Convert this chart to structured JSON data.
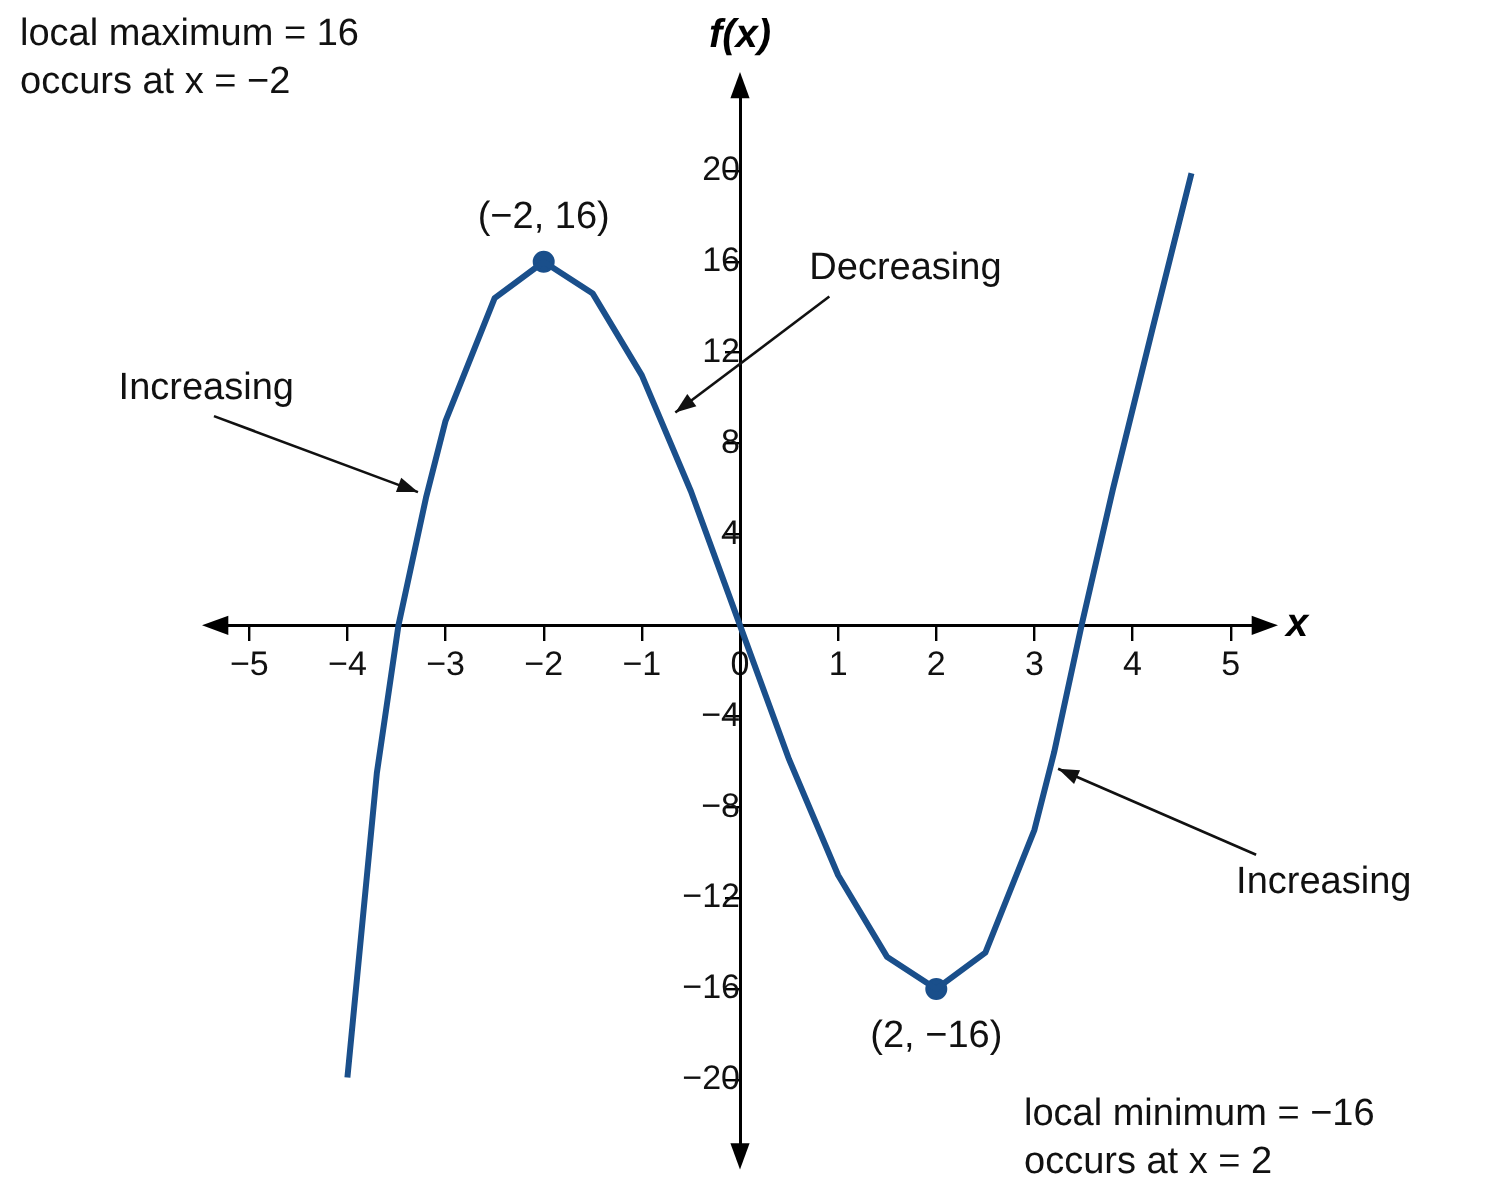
{
  "chart_data": {
    "type": "line",
    "xlabel": "x",
    "ylabel": "f(x)",
    "xlim": [
      -5.4,
      5.4
    ],
    "ylim": [
      -23.6,
      24
    ],
    "xticks": [
      -5,
      -4,
      -3,
      -2,
      -1,
      0,
      1,
      2,
      3,
      4,
      5
    ],
    "yticks": [
      -20,
      -16,
      -12,
      -8,
      -4,
      {
        "value": 0,
        "label": null
      },
      4,
      8,
      12,
      16,
      20
    ],
    "grid": false,
    "legend": false,
    "series": [
      {
        "color": "#1a4f8b",
        "marker": "none",
        "x": [
          -4.0,
          -3.7,
          -3.48,
          -3.2,
          -3,
          -2.5,
          -2,
          -1.5,
          -1,
          -0.5,
          0,
          0.5,
          1,
          1.5,
          2,
          2.5,
          3,
          3.2,
          3.48,
          3.8,
          4.2,
          4.6
        ],
        "values": [
          -19.9,
          -6.5,
          0,
          5.6,
          9,
          14.4,
          16,
          14.6,
          11,
          5.9,
          0,
          -5.9,
          -11,
          -14.6,
          -16,
          -14.4,
          -9,
          -5.6,
          0,
          6,
          13,
          19.9
        ]
      },
      {
        "type": "scatter",
        "color": "#1a4f8b",
        "marker": "circle",
        "x": [
          -2,
          2
        ],
        "values": [
          16,
          -16
        ]
      }
    ],
    "annotations": [
      "local maximum = 16\noccurs at x = −2",
      {
        "text": "(−2, 16)",
        "x": -2,
        "y": 16
      },
      {
        "text": "Increasing",
        "x": -3.22,
        "y": 5.6
      },
      {
        "text": "Decreasing",
        "x": -0.72,
        "y": 9.1
      },
      {
        "text": "Increasing",
        "x": 3.18,
        "y": -6.05
      },
      {
        "text": "(2, −16)",
        "x": 2,
        "y": -16
      },
      "local minimum = −16\noccurs at x = 2"
    ]
  }
}
